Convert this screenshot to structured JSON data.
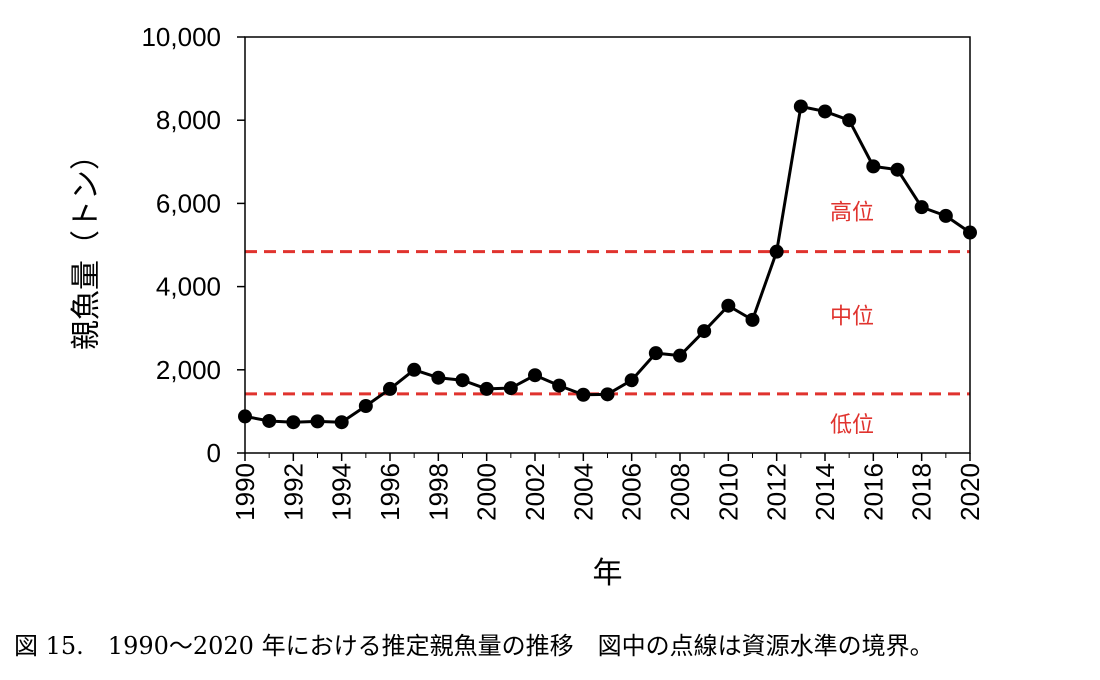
{
  "caption": "図 15.　1990～2020 年における推定親魚量の推移　図中の点線は資源水準の境界。",
  "chart_data": {
    "type": "line",
    "xlabel": "年",
    "ylabel": "親魚量（トン）",
    "ylim": [
      0,
      10000
    ],
    "xlim": [
      1990,
      2020
    ],
    "y_ticks": [
      0,
      2000,
      4000,
      6000,
      8000,
      10000
    ],
    "y_tick_labels": [
      "0",
      "2,000",
      "4,000",
      "6,000",
      "8,000",
      "10,000"
    ],
    "x_ticks": [
      1990,
      1992,
      1994,
      1996,
      1998,
      2000,
      2002,
      2004,
      2006,
      2008,
      2010,
      2012,
      2014,
      2016,
      2018,
      2020
    ],
    "x_tick_labels": [
      "1990",
      "1992",
      "1994",
      "1996",
      "1998",
      "2000",
      "2002",
      "2004",
      "2006",
      "2008",
      "2010",
      "2012",
      "2014",
      "2016",
      "2018",
      "2020"
    ],
    "grid": false,
    "series": [
      {
        "x": [
          1990,
          1991,
          1992,
          1993,
          1994,
          1995,
          1996,
          1997,
          1998,
          1999,
          2000,
          2001,
          2002,
          2003,
          2004,
          2005,
          2006,
          2007,
          2008,
          2009,
          2010,
          2011,
          2012,
          2013,
          2014,
          2015,
          2016,
          2017,
          2018,
          2019,
          2020
        ],
        "values": [
          880,
          770,
          740,
          760,
          740,
          1130,
          1540,
          2000,
          1810,
          1750,
          1540,
          1560,
          1870,
          1620,
          1400,
          1410,
          1750,
          2400,
          2340,
          2930,
          3540,
          3200,
          4840,
          8330,
          8210,
          8000,
          6890,
          6810,
          5910,
          5700,
          5300
        ],
        "color": "#000000"
      }
    ],
    "thresholds": [
      {
        "value": 4840,
        "color": "#e0332e"
      },
      {
        "value": 1420,
        "color": "#e0332e"
      }
    ],
    "bands": [
      {
        "label": "高位",
        "label_y": 5800
      },
      {
        "label": "中位",
        "label_y": 3300
      },
      {
        "label": "低位",
        "label_y": 700
      }
    ]
  }
}
